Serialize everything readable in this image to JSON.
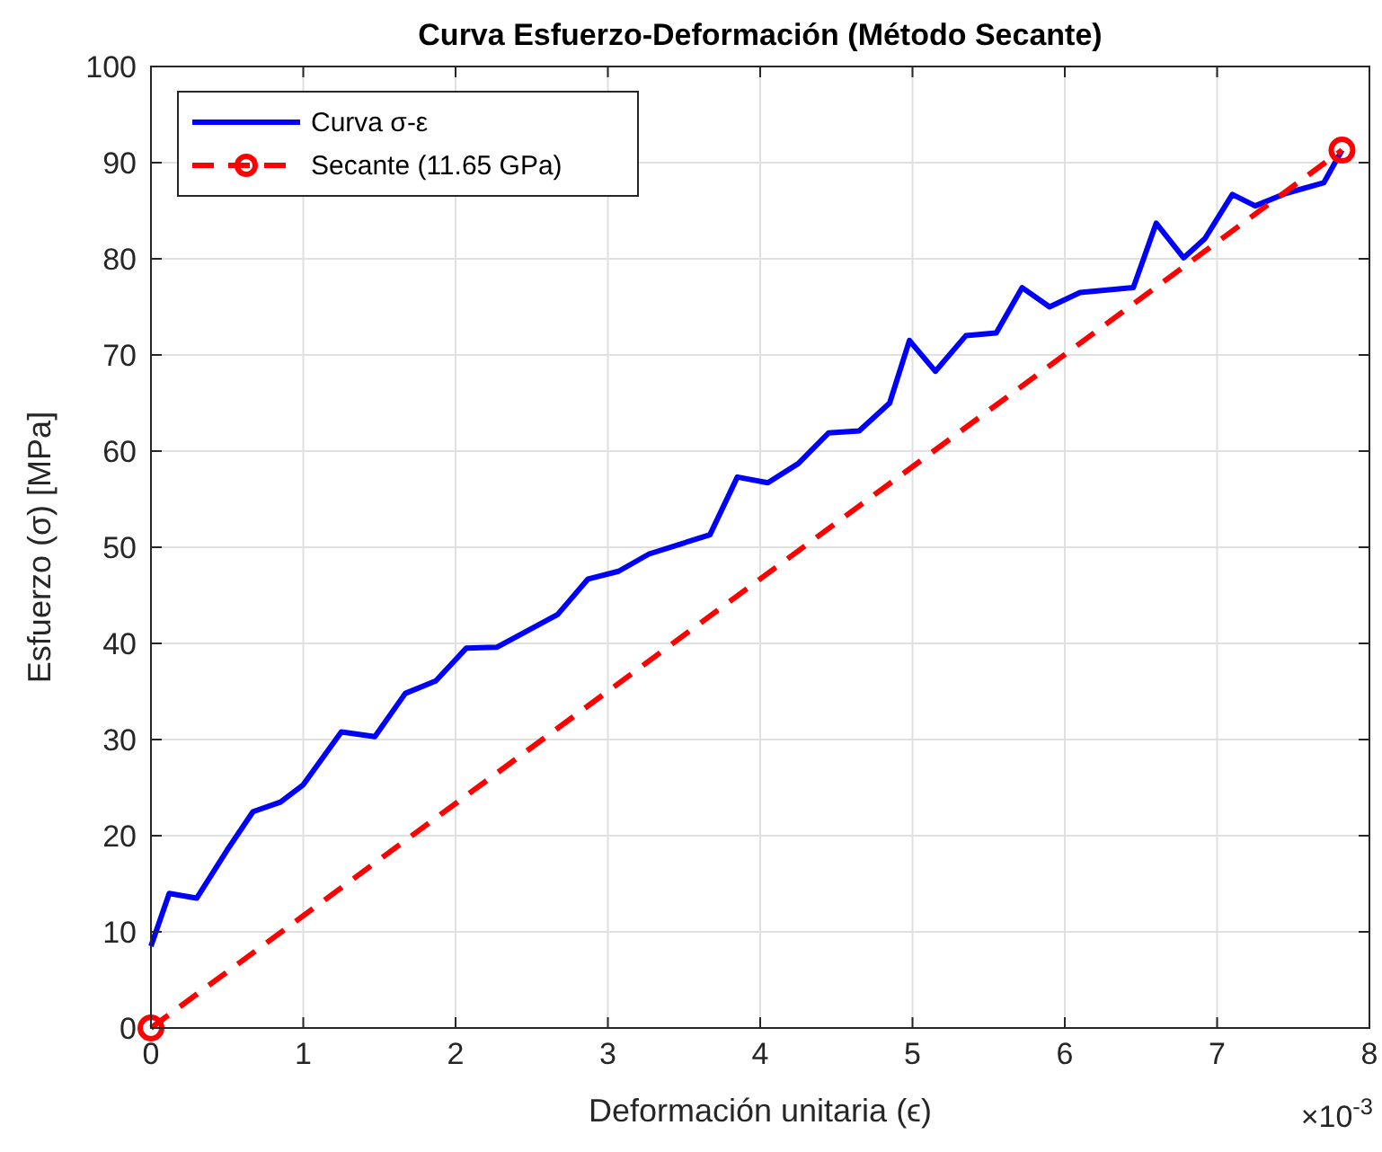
{
  "chart_data": {
    "type": "line",
    "title": "Curva Esfuerzo-Deformación (Método Secante)",
    "xlabel": "Deformación unitaria (ϵ)",
    "ylabel": "Esfuerzo (σ) [MPa]",
    "annotations": [
      "×10$^{-3}$"
    ],
    "xlim": [
      0,
      8
    ],
    "xticks": [
      0,
      1,
      2,
      3,
      4,
      5,
      6,
      7,
      8
    ],
    "ylim": [
      0,
      100
    ],
    "yticks": [
      0,
      10,
      20,
      30,
      40,
      50,
      60,
      70,
      80,
      90,
      100
    ],
    "grid": true,
    "legend": "top left",
    "series": [
      {
        "name": "Curva σ-ε",
        "color": "#0000ff",
        "line_style": "solid",
        "marker": "none",
        "x": [
          0,
          0.12,
          0.3,
          0.5,
          0.67,
          0.85,
          1.0,
          1.25,
          1.47,
          1.67,
          1.87,
          2.07,
          2.27,
          2.47,
          2.67,
          2.87,
          3.07,
          3.27,
          3.47,
          3.67,
          3.85,
          4.05,
          4.25,
          4.45,
          4.65,
          4.85,
          4.98,
          5.15,
          5.35,
          5.55,
          5.72,
          5.9,
          6.1,
          6.45,
          6.6,
          6.78,
          6.92,
          7.1,
          7.25,
          7.45,
          7.7,
          7.82
        ],
        "values": [
          8.5,
          14,
          13.5,
          18.5,
          22.5,
          23.5,
          25.3,
          30.8,
          30.3,
          34.8,
          36.1,
          39.5,
          39.6,
          41.3,
          43,
          46.7,
          47.5,
          49.3,
          50.3,
          51.3,
          57.3,
          56.7,
          58.7,
          61.9,
          62.1,
          65,
          71.5,
          68.3,
          72,
          72.3,
          77,
          75,
          76.5,
          77,
          83.7,
          80.1,
          82.1,
          86.7,
          85.5,
          86.8,
          87.9,
          91.3
        ]
      },
      {
        "name": "Secante (11.65 GPa)",
        "color": "#ff0000",
        "line_style": "dashed",
        "marker": "circle",
        "x": [
          0,
          7.82
        ],
        "values": [
          0,
          91.3
        ]
      }
    ]
  }
}
